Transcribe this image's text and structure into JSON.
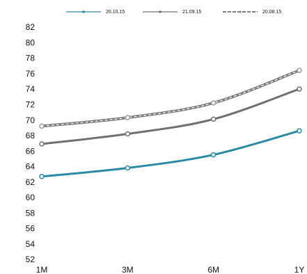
{
  "chart_data": {
    "type": "line",
    "categories": [
      "1M",
      "3M",
      "6M",
      "1Y"
    ],
    "series": [
      {
        "name": "20.10.15",
        "color": "#2b88a3",
        "values": [
          62.8,
          63.9,
          65.6,
          68.7
        ]
      },
      {
        "name": "21.09.15",
        "color": "#707070",
        "values": [
          67.0,
          68.3,
          70.2,
          74.1
        ]
      },
      {
        "name": "20.08.15",
        "color": "#7a7a7a",
        "dashed": true,
        "values": [
          69.3,
          70.4,
          72.3,
          76.5
        ]
      }
    ],
    "ylim": [
      52,
      82
    ],
    "yticks": [
      52,
      54,
      56,
      58,
      60,
      62,
      64,
      66,
      68,
      70,
      72,
      74,
      76,
      78,
      80,
      82
    ]
  }
}
